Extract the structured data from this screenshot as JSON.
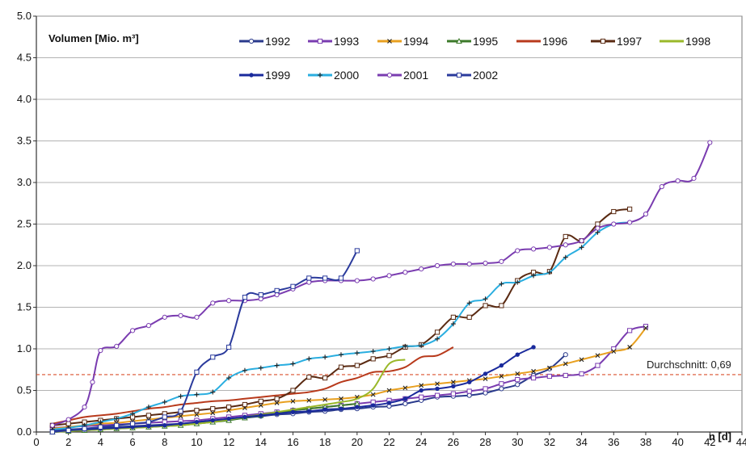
{
  "chart_data": {
    "type": "line",
    "title": "",
    "ylabel": "Volumen  [Mio. m³]",
    "xlabel": "n [d]",
    "xlim": [
      0,
      44
    ],
    "ylim": [
      0,
      5
    ],
    "x_ticks": [
      0,
      2,
      4,
      6,
      8,
      10,
      12,
      14,
      16,
      18,
      20,
      22,
      24,
      26,
      28,
      30,
      32,
      34,
      36,
      38,
      40,
      42,
      44
    ],
    "y_ticks": [
      "0.0",
      "0.5",
      "1.0",
      "1.5",
      "2.0",
      "2.5",
      "3.0",
      "3.5",
      "4.0",
      "4.5",
      "5.0"
    ],
    "grid": true,
    "legend_position": "top",
    "average": {
      "label": "Durchschnitt: 0,69",
      "value": 0.69,
      "color": "#d9502e"
    },
    "series": [
      {
        "name": "1992",
        "color": "#2a3a8c",
        "marker": "circle",
        "x": [
          1,
          2,
          3,
          4,
          5,
          6,
          7,
          8,
          9,
          10,
          11,
          12,
          13,
          14,
          15,
          16,
          17,
          18,
          19,
          20,
          21,
          22,
          23,
          24,
          25,
          26,
          27,
          28,
          29,
          30,
          31,
          32,
          33
        ],
        "y": [
          0.02,
          0.03,
          0.04,
          0.05,
          0.06,
          0.07,
          0.08,
          0.09,
          0.1,
          0.11,
          0.13,
          0.15,
          0.17,
          0.19,
          0.21,
          0.22,
          0.24,
          0.25,
          0.27,
          0.28,
          0.3,
          0.31,
          0.34,
          0.38,
          0.42,
          0.43,
          0.44,
          0.47,
          0.52,
          0.57,
          0.68,
          0.76,
          0.93
        ]
      },
      {
        "name": "1993",
        "color": "#7a3cb0",
        "marker": "square",
        "x": [
          1,
          2,
          3,
          4,
          5,
          6,
          7,
          8,
          9,
          10,
          11,
          12,
          13,
          14,
          15,
          16,
          17,
          18,
          19,
          20,
          21,
          22,
          23,
          24,
          25,
          26,
          27,
          28,
          29,
          30,
          31,
          32,
          33,
          34,
          35,
          36,
          37,
          38
        ],
        "y": [
          0.05,
          0.06,
          0.07,
          0.08,
          0.09,
          0.1,
          0.11,
          0.12,
          0.13,
          0.14,
          0.16,
          0.18,
          0.2,
          0.22,
          0.24,
          0.26,
          0.28,
          0.3,
          0.32,
          0.34,
          0.36,
          0.38,
          0.4,
          0.42,
          0.44,
          0.46,
          0.49,
          0.52,
          0.58,
          0.63,
          0.65,
          0.67,
          0.68,
          0.7,
          0.8,
          1.0,
          1.22,
          1.27
        ]
      },
      {
        "name": "1994",
        "color": "#e8a020",
        "marker": "x",
        "x": [
          1,
          2,
          3,
          4,
          5,
          6,
          7,
          8,
          9,
          10,
          11,
          12,
          13,
          14,
          15,
          16,
          17,
          18,
          19,
          20,
          21,
          22,
          23,
          24,
          25,
          26,
          27,
          28,
          29,
          30,
          31,
          32,
          33,
          34,
          35,
          36,
          37,
          38
        ],
        "y": [
          0.04,
          0.06,
          0.08,
          0.1,
          0.11,
          0.13,
          0.15,
          0.17,
          0.19,
          0.21,
          0.23,
          0.26,
          0.29,
          0.32,
          0.35,
          0.37,
          0.38,
          0.39,
          0.4,
          0.42,
          0.45,
          0.5,
          0.53,
          0.56,
          0.58,
          0.6,
          0.62,
          0.64,
          0.67,
          0.7,
          0.73,
          0.77,
          0.82,
          0.87,
          0.92,
          0.97,
          1.02,
          1.25
        ]
      },
      {
        "name": "1995",
        "color": "#3c7a2a",
        "marker": "triangle",
        "x": [
          1,
          2,
          3,
          4,
          5,
          6,
          7,
          8,
          9,
          10,
          11,
          12,
          13,
          14,
          15,
          16,
          17,
          18,
          19,
          20
        ],
        "y": [
          0.0,
          0.01,
          0.02,
          0.03,
          0.04,
          0.05,
          0.06,
          0.07,
          0.08,
          0.1,
          0.12,
          0.14,
          0.17,
          0.2,
          0.23,
          0.26,
          0.28,
          0.3,
          0.32,
          0.34
        ]
      },
      {
        "name": "1996",
        "color": "#b83a1c",
        "marker": "none",
        "x": [
          1,
          2,
          3,
          4,
          5,
          6,
          7,
          8,
          9,
          10,
          11,
          12,
          13,
          14,
          15,
          16,
          17,
          18,
          19,
          20,
          21,
          22,
          23,
          24,
          25,
          26
        ],
        "y": [
          0.1,
          0.14,
          0.18,
          0.2,
          0.22,
          0.25,
          0.28,
          0.3,
          0.33,
          0.35,
          0.37,
          0.38,
          0.4,
          0.42,
          0.44,
          0.46,
          0.48,
          0.52,
          0.6,
          0.65,
          0.72,
          0.73,
          0.78,
          0.9,
          0.92,
          1.02
        ]
      },
      {
        "name": "1997",
        "color": "#5a2a12",
        "marker": "square",
        "x": [
          1,
          2,
          3,
          4,
          5,
          6,
          7,
          8,
          9,
          10,
          11,
          12,
          13,
          14,
          15,
          16,
          17,
          18,
          19,
          20,
          21,
          22,
          23,
          24,
          25,
          26,
          27,
          28,
          29,
          30,
          31,
          32,
          33,
          34,
          35,
          36,
          37
        ],
        "y": [
          0.08,
          0.1,
          0.12,
          0.14,
          0.16,
          0.18,
          0.2,
          0.22,
          0.24,
          0.26,
          0.28,
          0.3,
          0.33,
          0.37,
          0.4,
          0.5,
          0.66,
          0.65,
          0.78,
          0.8,
          0.88,
          0.92,
          1.02,
          1.05,
          1.2,
          1.38,
          1.38,
          1.52,
          1.52,
          1.82,
          1.92,
          1.93,
          2.35,
          2.3,
          2.5,
          2.65,
          2.68
        ]
      },
      {
        "name": "1998",
        "color": "#9ab82a",
        "marker": "none",
        "x": [
          1,
          2,
          3,
          4,
          5,
          6,
          7,
          8,
          9,
          10,
          11,
          12,
          13,
          14,
          15,
          16,
          17,
          18,
          19,
          20,
          21,
          22,
          23
        ],
        "y": [
          0.0,
          0.01,
          0.02,
          0.03,
          0.04,
          0.05,
          0.06,
          0.07,
          0.08,
          0.1,
          0.12,
          0.15,
          0.18,
          0.21,
          0.24,
          0.27,
          0.3,
          0.33,
          0.36,
          0.4,
          0.52,
          0.82,
          0.87
        ]
      },
      {
        "name": "1999",
        "color": "#1a2a9c",
        "marker": "dot",
        "x": [
          1,
          2,
          3,
          4,
          5,
          6,
          7,
          8,
          9,
          10,
          11,
          12,
          13,
          14,
          15,
          16,
          17,
          18,
          19,
          20,
          21,
          22,
          23,
          24,
          25,
          26,
          27,
          28,
          29,
          30,
          31
        ],
        "y": [
          0.01,
          0.02,
          0.03,
          0.04,
          0.05,
          0.06,
          0.07,
          0.08,
          0.1,
          0.12,
          0.14,
          0.16,
          0.18,
          0.2,
          0.22,
          0.24,
          0.25,
          0.27,
          0.28,
          0.3,
          0.32,
          0.35,
          0.4,
          0.5,
          0.52,
          0.55,
          0.6,
          0.7,
          0.8,
          0.93,
          1.02
        ]
      },
      {
        "name": "2000",
        "color": "#2aaee0",
        "marker": "plus",
        "x": [
          1,
          2,
          3,
          4,
          5,
          6,
          7,
          8,
          9,
          10,
          11,
          12,
          13,
          14,
          15,
          16,
          17,
          18,
          19,
          20,
          21,
          22,
          23,
          24,
          25,
          26,
          27,
          28,
          29,
          30,
          31,
          32,
          33,
          34,
          35,
          36,
          37
        ],
        "y": [
          0.03,
          0.05,
          0.08,
          0.12,
          0.16,
          0.22,
          0.3,
          0.36,
          0.43,
          0.45,
          0.48,
          0.65,
          0.74,
          0.77,
          0.8,
          0.82,
          0.88,
          0.9,
          0.93,
          0.95,
          0.97,
          1.0,
          1.03,
          1.04,
          1.12,
          1.3,
          1.55,
          1.6,
          1.78,
          1.8,
          1.88,
          1.92,
          2.1,
          2.22,
          2.4,
          2.5,
          2.52
        ]
      },
      {
        "name": "2001",
        "color": "#7a3cb0",
        "marker": "circle",
        "x": [
          1,
          2,
          3,
          3.5,
          4,
          5,
          6,
          7,
          8,
          9,
          10,
          11,
          12,
          13,
          14,
          15,
          16,
          17,
          18,
          19,
          20,
          21,
          22,
          23,
          24,
          25,
          26,
          27,
          28,
          29,
          30,
          31,
          32,
          33,
          34,
          35,
          36,
          37,
          38,
          39,
          40,
          41,
          42
        ],
        "y": [
          0.08,
          0.15,
          0.3,
          0.6,
          0.98,
          1.03,
          1.22,
          1.28,
          1.38,
          1.4,
          1.38,
          1.55,
          1.58,
          1.58,
          1.6,
          1.65,
          1.72,
          1.8,
          1.82,
          1.82,
          1.82,
          1.84,
          1.88,
          1.92,
          1.96,
          2.0,
          2.02,
          2.02,
          2.03,
          2.05,
          2.18,
          2.2,
          2.22,
          2.25,
          2.3,
          2.45,
          2.5,
          2.52,
          2.62,
          2.95,
          3.02,
          3.05,
          3.48
        ]
      },
      {
        "name": "2002",
        "color": "#2a3a9c",
        "marker": "square",
        "x": [
          1,
          2,
          3,
          4,
          5,
          6,
          7,
          8,
          9,
          10,
          11,
          12,
          13,
          14,
          15,
          16,
          17,
          18,
          19,
          20
        ],
        "y": [
          0.0,
          0.02,
          0.04,
          0.06,
          0.08,
          0.1,
          0.12,
          0.18,
          0.25,
          0.72,
          0.9,
          1.02,
          1.62,
          1.65,
          1.7,
          1.75,
          1.85,
          1.85,
          1.85,
          2.18
        ]
      }
    ]
  }
}
